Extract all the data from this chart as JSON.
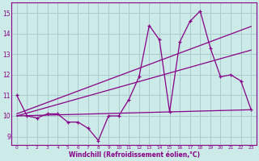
{
  "bg_color": "#cceae7",
  "grid_color": "#aacccc",
  "line_color": "#880088",
  "xlabel": "Windchill (Refroidissement éolien,°C)",
  "xlim": [
    -0.5,
    23.5
  ],
  "ylim": [
    8.6,
    15.5
  ],
  "yticks": [
    9,
    10,
    11,
    12,
    13,
    14,
    15
  ],
  "xticks": [
    0,
    1,
    2,
    3,
    4,
    5,
    6,
    7,
    8,
    9,
    10,
    11,
    12,
    13,
    14,
    15,
    16,
    17,
    18,
    19,
    20,
    21,
    22,
    23
  ],
  "line1_x": [
    0,
    1,
    2,
    3,
    4,
    5,
    6,
    7,
    8,
    9,
    10,
    11,
    12,
    13,
    14,
    15,
    16,
    17,
    18,
    19,
    20,
    21,
    22,
    23
  ],
  "line1_y": [
    11.0,
    10.0,
    9.9,
    10.1,
    10.1,
    9.7,
    9.7,
    9.4,
    8.8,
    10.0,
    10.0,
    10.8,
    11.9,
    14.4,
    13.7,
    10.2,
    13.6,
    14.6,
    15.1,
    13.3,
    11.9,
    12.0,
    11.7,
    10.3
  ],
  "line2_x": [
    0,
    23
  ],
  "line2_y": [
    10.0,
    10.3
  ],
  "line3_x": [
    0,
    23
  ],
  "line3_y": [
    10.0,
    13.2
  ],
  "line4_x": [
    0,
    23
  ],
  "line4_y": [
    10.1,
    14.35
  ]
}
